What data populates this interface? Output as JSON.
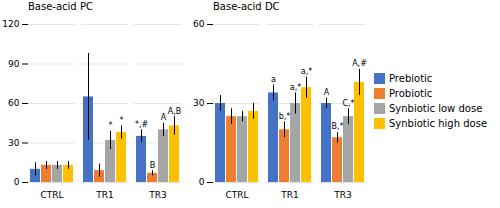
{
  "chart_data": [
    {
      "type": "bar",
      "title": "Base-acid PC",
      "categories": [
        "CTRL",
        "TR1",
        "TR3"
      ],
      "series": [
        {
          "name": "Prebiotic",
          "color": "#4472C4",
          "values": [
            10,
            65,
            35
          ],
          "errors": [
            5,
            33,
            5
          ],
          "annotations": [
            null,
            null,
            "*,#"
          ]
        },
        {
          "name": "Probiotic",
          "color": "#ED7D31",
          "values": [
            13,
            9,
            7
          ],
          "errors": [
            3,
            5,
            2
          ],
          "annotations": [
            null,
            null,
            "B"
          ]
        },
        {
          "name": "Synbiotic low dose",
          "color": "#A5A5A5",
          "values": [
            13,
            32,
            40
          ],
          "errors": [
            3,
            7,
            5
          ],
          "annotations": [
            null,
            "*",
            "A"
          ]
        },
        {
          "name": "Synbiotic high dose",
          "color": "#FFC000",
          "values": [
            13,
            38,
            43
          ],
          "errors": [
            3,
            5,
            7
          ],
          "annotations": [
            null,
            "*",
            "A,B"
          ]
        }
      ],
      "ylim": [
        0,
        120
      ],
      "yticks": [
        0,
        30,
        60,
        90,
        120
      ],
      "grid": true
    },
    {
      "type": "bar",
      "title": "Base-acid DC",
      "categories": [
        "CTRL",
        "TR1",
        "TR3"
      ],
      "series": [
        {
          "name": "Prebiotic",
          "color": "#4472C4",
          "values": [
            30,
            34,
            30
          ],
          "errors": [
            3,
            3,
            2
          ],
          "annotations": [
            null,
            "a",
            "A"
          ]
        },
        {
          "name": "Probiotic",
          "color": "#ED7D31",
          "values": [
            25,
            20,
            17
          ],
          "errors": [
            3,
            3,
            2
          ],
          "annotations": [
            null,
            "b,*",
            "B,*"
          ]
        },
        {
          "name": "Synbiotic low dose",
          "color": "#A5A5A5",
          "values": [
            25,
            30,
            25
          ],
          "errors": [
            2,
            4,
            3
          ],
          "annotations": [
            null,
            "a,*",
            "C,*"
          ]
        },
        {
          "name": "Synbiotic high dose",
          "color": "#FFC000",
          "values": [
            27,
            36,
            38
          ],
          "errors": [
            3,
            4,
            5
          ],
          "annotations": [
            null,
            "a,*",
            "A,#"
          ]
        }
      ],
      "ylim": [
        0,
        60
      ],
      "yticks": [
        0,
        30,
        60
      ],
      "grid": true,
      "legend": "right"
    }
  ]
}
